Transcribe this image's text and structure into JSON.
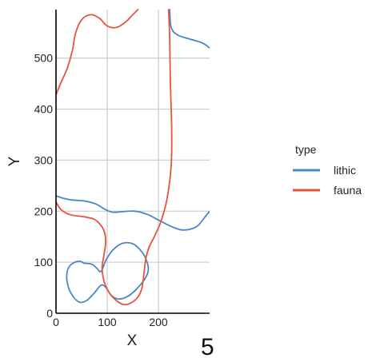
{
  "chart_data": {
    "type": "line",
    "title": "",
    "xlabel": "X",
    "ylabel": "Y",
    "xlim": [
      0,
      300
    ],
    "ylim": [
      0,
      595
    ],
    "x_ticks": [
      0,
      100,
      200
    ],
    "y_ticks": [
      0,
      100,
      200,
      300,
      400,
      500
    ],
    "x_tick_labels": [
      "0",
      "100",
      "200"
    ],
    "y_tick_labels": [
      "0",
      "100",
      "200",
      "300",
      "400",
      "500"
    ],
    "grid": true,
    "legend": {
      "title": "type",
      "position": "right",
      "entries": [
        "lithic",
        "fauna"
      ]
    },
    "panel_label": "5",
    "colors": {
      "lithic": "#4a86c6",
      "fauna": "#e8533f",
      "grid": "#d0d0d0",
      "axis": "#000000"
    },
    "series": [
      {
        "name": "lithic",
        "paths": [
          [
            [
              0,
              230
            ],
            [
              12,
              226
            ],
            [
              30,
              222
            ],
            [
              55,
              220
            ],
            [
              78,
              214
            ],
            [
              95,
              204
            ],
            [
              110,
              198
            ],
            [
              130,
              199
            ],
            [
              155,
              200
            ],
            [
              180,
              193
            ],
            [
              205,
              180
            ],
            [
              230,
              168
            ],
            [
              250,
              163
            ],
            [
              275,
              170
            ],
            [
              292,
              190
            ],
            [
              300,
              200
            ]
          ],
          [
            [
              55,
              98
            ],
            [
              45,
              102
            ],
            [
              30,
              96
            ],
            [
              22,
              82
            ],
            [
              22,
              60
            ],
            [
              30,
              38
            ],
            [
              45,
              22
            ],
            [
              60,
              25
            ],
            [
              75,
              40
            ],
            [
              88,
              55
            ],
            [
              98,
              50
            ],
            [
              108,
              35
            ],
            [
              122,
              28
            ],
            [
              138,
              32
            ],
            [
              155,
              45
            ],
            [
              172,
              65
            ],
            [
              180,
              82
            ],
            [
              178,
              100
            ],
            [
              168,
              120
            ],
            [
              150,
              136
            ],
            [
              130,
              137
            ],
            [
              112,
              125
            ],
            [
              98,
              105
            ],
            [
              88,
              82
            ],
            [
              80,
              88
            ],
            [
              70,
              96
            ],
            [
              55,
              98
            ]
          ],
          [
            [
              222,
              595
            ],
            [
              225,
              560
            ],
            [
              238,
              545
            ],
            [
              262,
              537
            ],
            [
              285,
              530
            ],
            [
              300,
              520
            ]
          ]
        ]
      },
      {
        "name": "fauna",
        "paths": [
          [
            [
              0,
              428
            ],
            [
              8,
              448
            ],
            [
              22,
              480
            ],
            [
              32,
              515
            ],
            [
              38,
              548
            ],
            [
              50,
              575
            ],
            [
              68,
              585
            ],
            [
              85,
              578
            ],
            [
              100,
              563
            ],
            [
              118,
              560
            ],
            [
              135,
              570
            ],
            [
              150,
              585
            ],
            [
              160,
              595
            ]
          ],
          [
            [
              0,
              218
            ],
            [
              10,
              203
            ],
            [
              28,
              193
            ],
            [
              55,
              189
            ],
            [
              75,
              184
            ],
            [
              88,
              172
            ],
            [
              95,
              158
            ],
            [
              97,
              138
            ],
            [
              93,
              110
            ],
            [
              90,
              88
            ],
            [
              94,
              62
            ],
            [
              104,
              40
            ],
            [
              118,
              25
            ],
            [
              132,
              17
            ],
            [
              146,
              20
            ],
            [
              160,
              32
            ],
            [
              168,
              50
            ],
            [
              172,
              80
            ],
            [
              176,
              110
            ],
            [
              182,
              130
            ],
            [
              192,
              150
            ],
            [
              205,
              180
            ],
            [
              217,
              225
            ],
            [
              225,
              290
            ],
            [
              226,
              360
            ],
            [
              224,
              430
            ],
            [
              223,
              480
            ],
            [
              222,
              540
            ],
            [
              220,
              595
            ]
          ]
        ]
      }
    ]
  }
}
